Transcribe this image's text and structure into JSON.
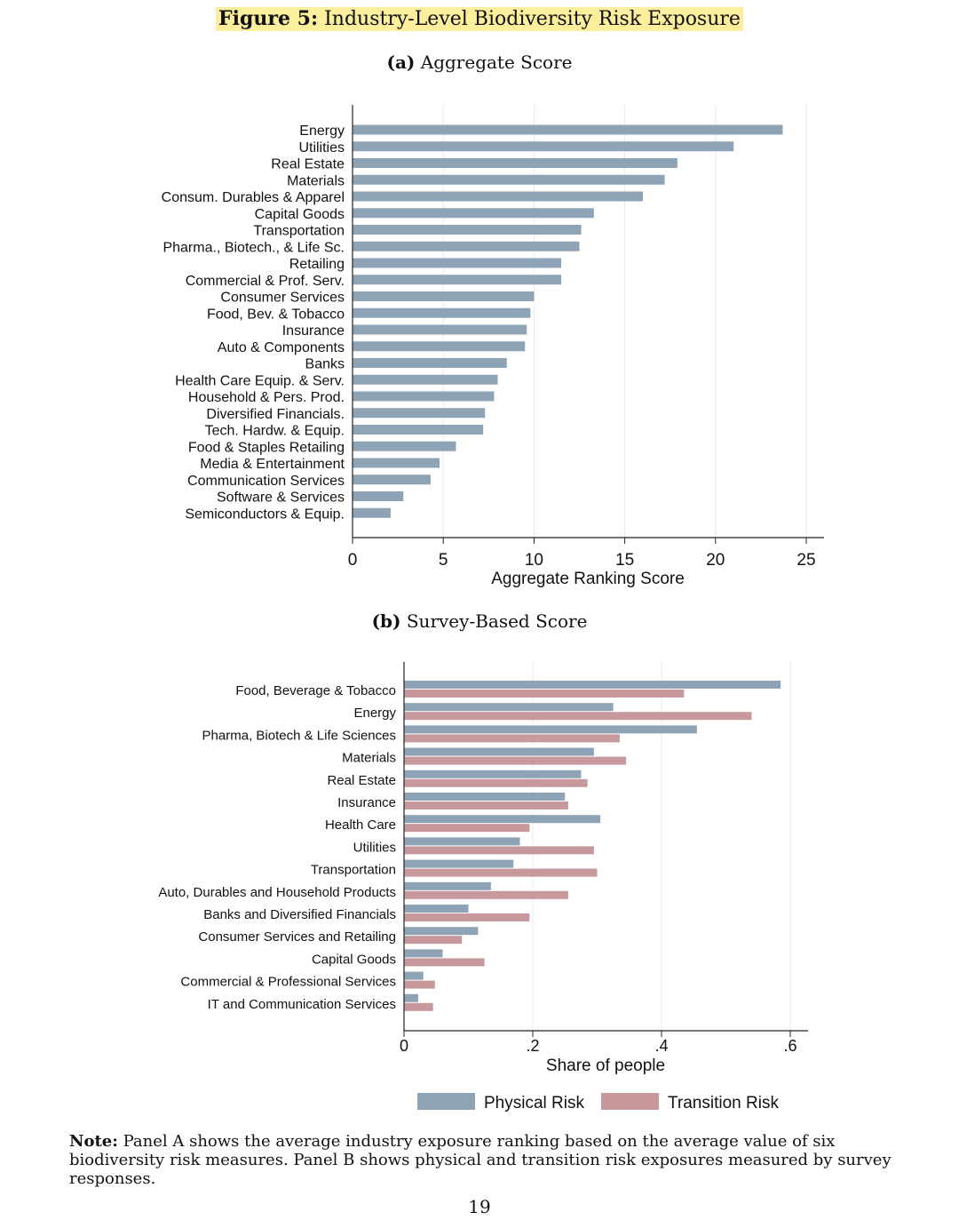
{
  "figure": {
    "label": "Figure 5:",
    "title": "Industry-Level Biodiversity Risk Exposure"
  },
  "panel_a": {
    "label": "(a)",
    "title": "Aggregate Score"
  },
  "panel_b": {
    "label": "(b)",
    "title": "Survey-Based Score"
  },
  "colors": {
    "physical": "#8fa3b6",
    "transition": "#c8999c",
    "axis": "#222222"
  },
  "chart_data": [
    {
      "type": "bar",
      "orientation": "horizontal",
      "title": "Aggregate Score",
      "xlabel": "Aggregate Ranking Score",
      "ylabel": "",
      "xlim": [
        0,
        25
      ],
      "xticks": [
        0,
        5,
        10,
        15,
        20,
        25
      ],
      "xtick_labels": [
        "0",
        "5",
        "10",
        "15",
        "20",
        "25"
      ],
      "grid": true,
      "categories": [
        "Energy",
        "Utilities",
        "Real Estate",
        "Materials",
        "Consum. Durables & Apparel",
        "Capital Goods",
        "Transportation",
        "Pharma., Biotech., & Life Sc.",
        "Retailing",
        "Commercial & Prof. Serv.",
        "Consumer Services",
        "Food, Bev. & Tobacco",
        "Insurance",
        "Auto & Components",
        "Banks",
        "Health Care Equip. & Serv.",
        "Household & Pers. Prod.",
        "Diversified Financials.",
        "Tech. Hardw. & Equip.",
        "Food & Staples Retailing",
        "Media & Entertainment",
        "Communication Services",
        "Software & Services",
        "Semiconductors & Equip."
      ],
      "values": [
        23.7,
        21.0,
        17.9,
        17.2,
        16.0,
        13.3,
        12.6,
        12.5,
        11.5,
        11.5,
        10.0,
        9.8,
        9.6,
        9.5,
        8.5,
        8.0,
        7.8,
        7.3,
        7.2,
        5.7,
        4.8,
        4.3,
        2.8,
        2.1
      ]
    },
    {
      "type": "bar",
      "orientation": "horizontal",
      "title": "Survey-Based Score",
      "xlabel": "Share of people",
      "ylabel": "",
      "xlim": [
        0,
        0.6
      ],
      "xticks": [
        0,
        0.2,
        0.4,
        0.6
      ],
      "xtick_labels": [
        "0",
        ".2",
        ".4",
        ".6"
      ],
      "grid": true,
      "legend_position": "bottom",
      "categories": [
        "Food, Beverage & Tobacco",
        "Energy",
        "Pharma, Biotech & Life Sciences",
        "Materials",
        "Real Estate",
        "Insurance",
        "Health Care",
        "Utilities",
        "Transportation",
        "Auto, Durables and Household Products",
        "Banks and Diversified Financials",
        "Consumer Services and Retailing",
        "Capital Goods",
        "Commercial & Professional Services",
        "IT and Communication Services"
      ],
      "series": [
        {
          "name": "Physical Risk",
          "values": [
            0.585,
            0.325,
            0.455,
            0.295,
            0.275,
            0.25,
            0.305,
            0.18,
            0.17,
            0.135,
            0.1,
            0.115,
            0.06,
            0.03,
            0.022
          ]
        },
        {
          "name": "Transition Risk",
          "values": [
            0.435,
            0.54,
            0.335,
            0.345,
            0.285,
            0.255,
            0.195,
            0.295,
            0.3,
            0.255,
            0.195,
            0.09,
            0.125,
            0.048,
            0.045
          ]
        }
      ]
    }
  ],
  "note": {
    "label": "Note:",
    "text": "Panel A shows the average industry exposure ranking based on the average value of six biodiversity risk measures. Panel B shows physical and transition risk exposures measured by survey responses."
  },
  "page_number": "19"
}
